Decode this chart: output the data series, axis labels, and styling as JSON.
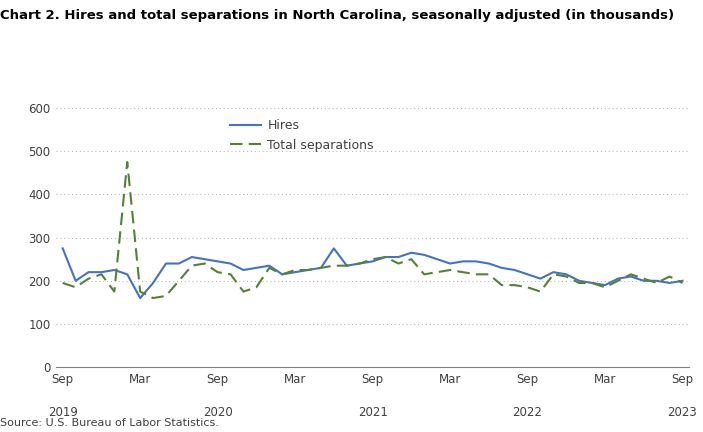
{
  "title": "Chart 2. Hires and total separations in North Carolina, seasonally adjusted (in thousands)",
  "source": "Source: U.S. Bureau of Labor Statistics.",
  "hires": [
    275,
    200,
    220,
    220,
    225,
    215,
    160,
    195,
    240,
    240,
    255,
    250,
    245,
    240,
    225,
    230,
    235,
    215,
    220,
    225,
    230,
    275,
    235,
    240,
    245,
    255,
    255,
    265,
    260,
    250,
    240,
    245,
    245,
    240,
    230,
    225,
    215,
    205,
    220,
    215,
    200,
    195,
    190,
    205,
    210,
    200,
    200,
    195,
    200
  ],
  "separations": [
    195,
    185,
    205,
    215,
    175,
    475,
    175,
    160,
    165,
    200,
    235,
    240,
    220,
    215,
    175,
    185,
    230,
    215,
    225,
    225,
    230,
    235,
    235,
    240,
    250,
    255,
    240,
    250,
    215,
    220,
    225,
    220,
    215,
    215,
    190,
    190,
    185,
    175,
    215,
    210,
    195,
    195,
    185,
    200,
    215,
    205,
    195,
    210,
    195
  ],
  "ylim": [
    0,
    600
  ],
  "yticks": [
    0,
    100,
    200,
    300,
    400,
    500,
    600
  ],
  "hires_color": "#4472c4",
  "sep_color": "#548235",
  "background_color": "#ffffff",
  "grid_color": "#b0b0b0",
  "tick_positions": [
    0,
    6,
    12,
    18,
    24,
    30,
    36,
    42,
    48
  ],
  "tick_labels": [
    "Sep",
    "Mar",
    "Sep",
    "Mar",
    "Sep",
    "Mar",
    "Sep",
    "Mar",
    "Sep"
  ],
  "year_positions": [
    0,
    12,
    24,
    36,
    48
  ],
  "year_labels": [
    "2019",
    "2020",
    "2021",
    "2022",
    "2023"
  ],
  "legend_labels": [
    "Hires",
    "Total separations"
  ]
}
